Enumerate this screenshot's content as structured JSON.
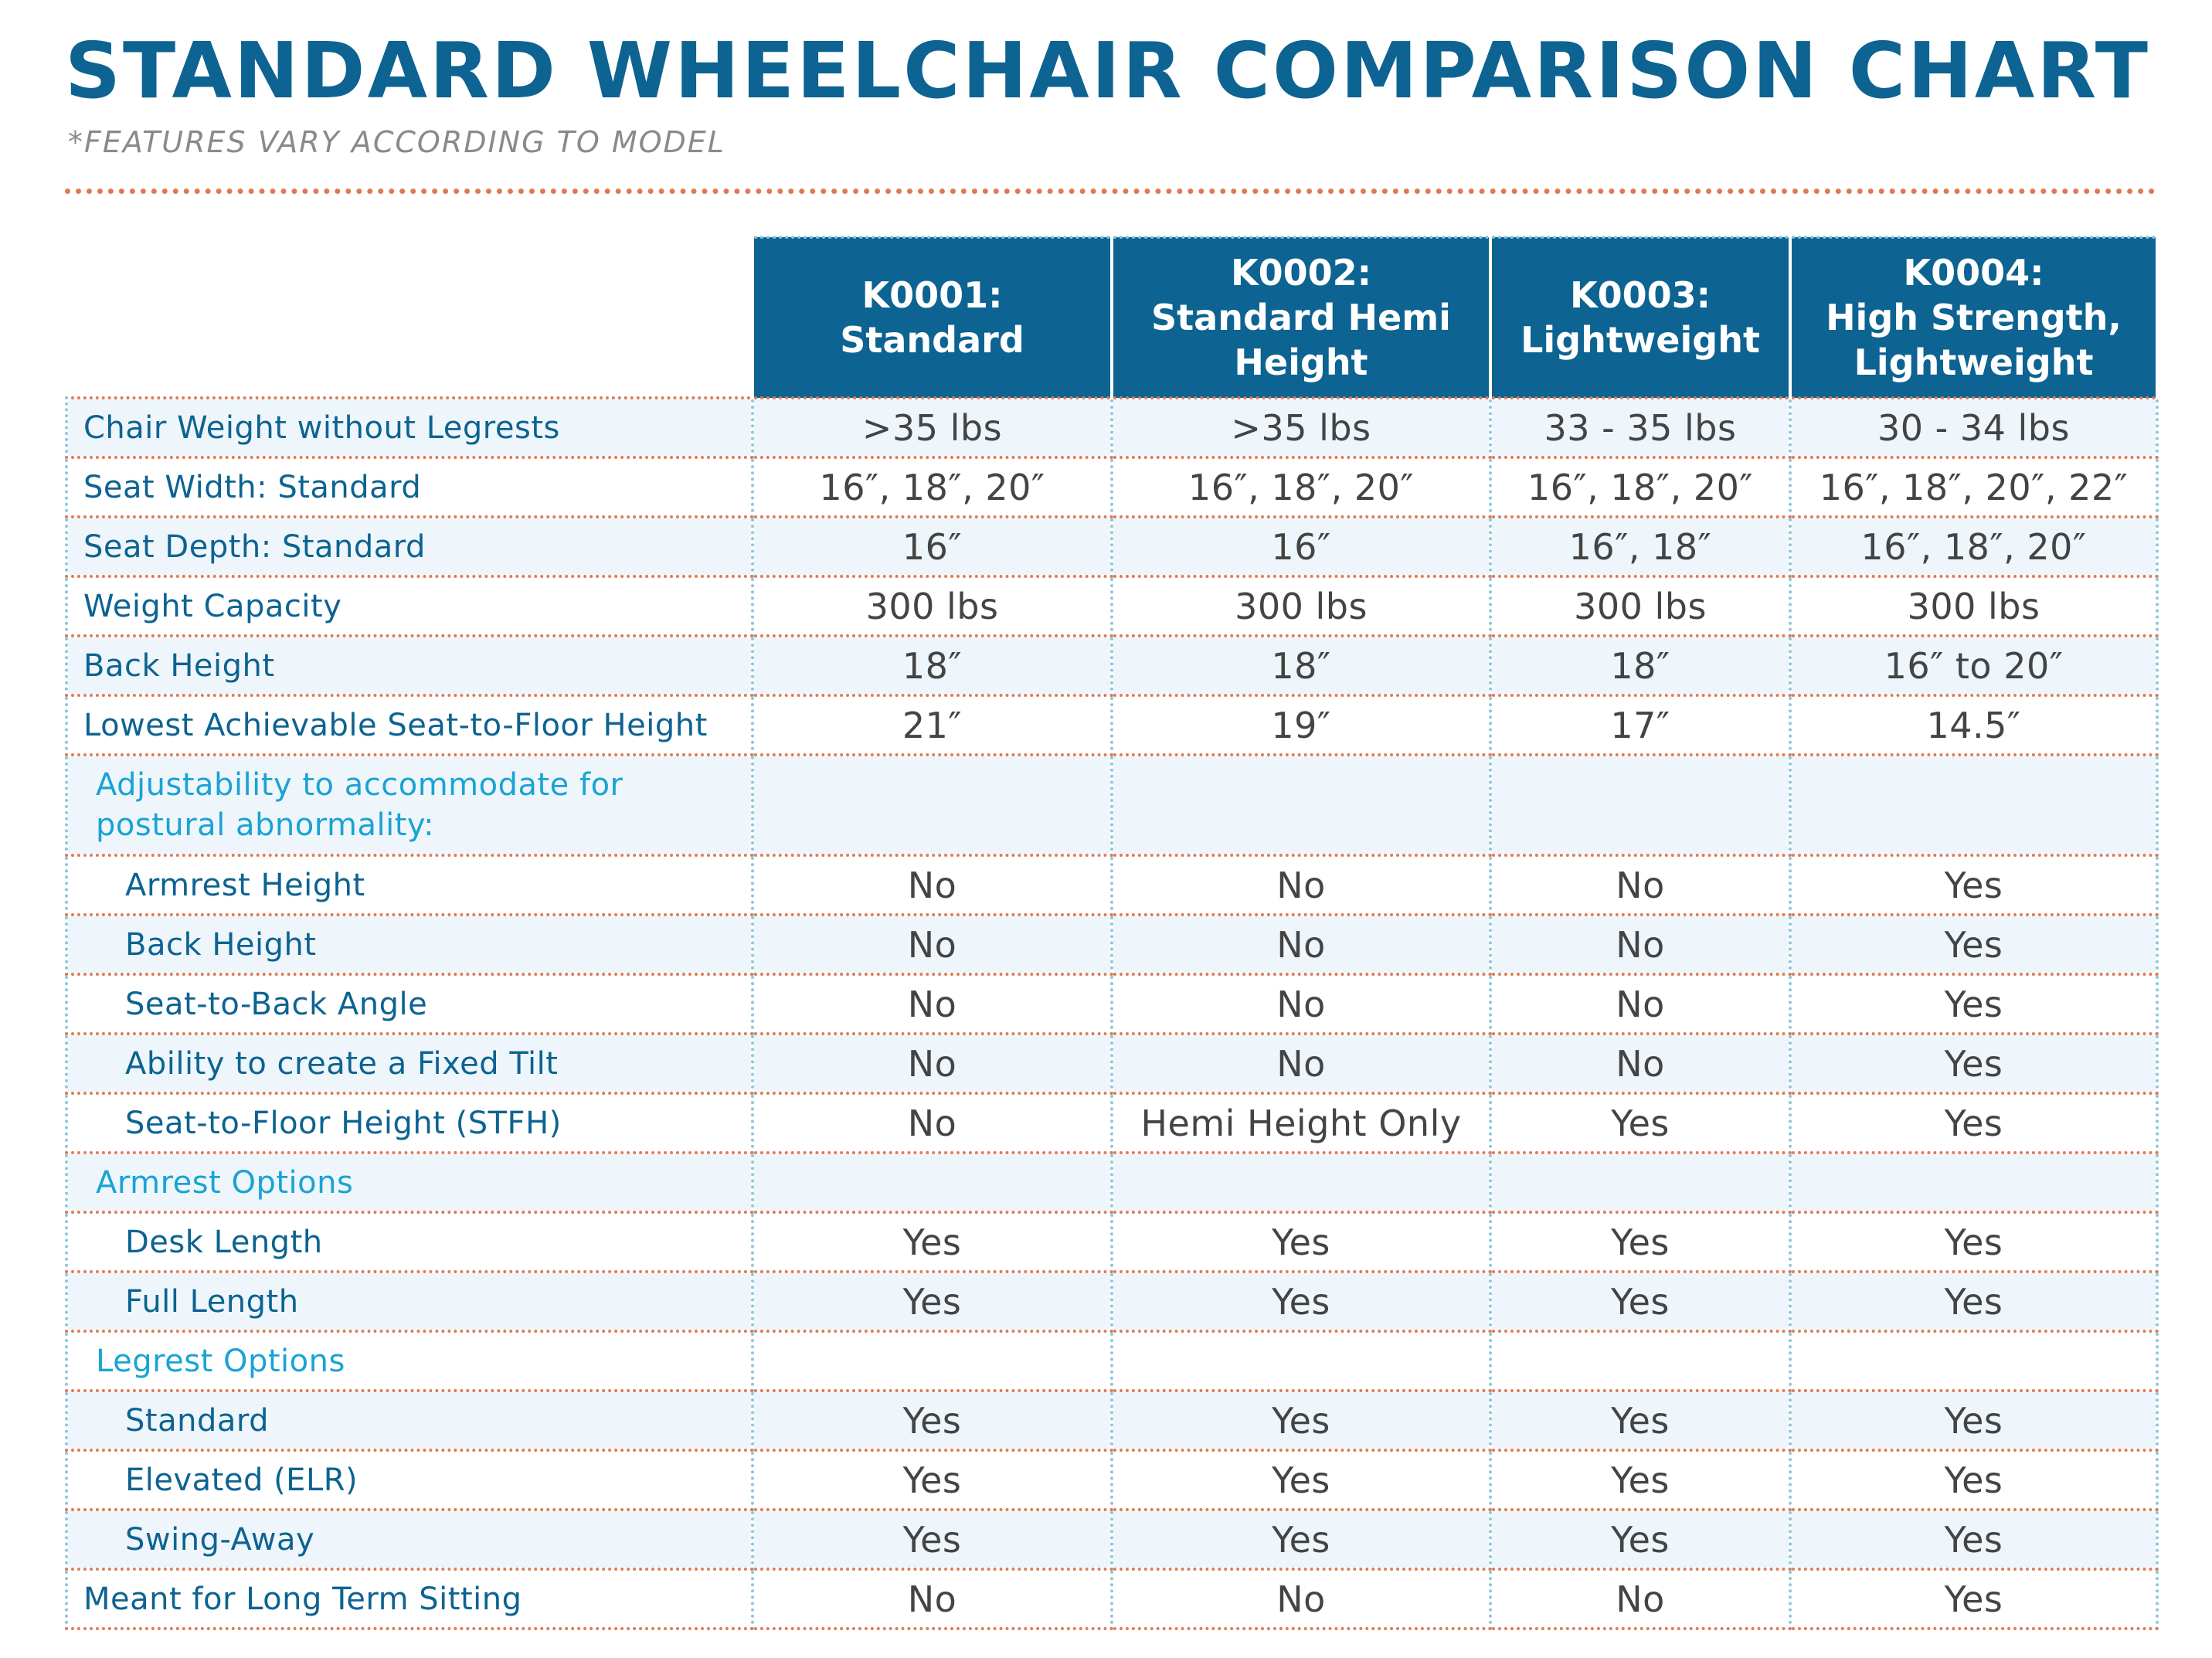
{
  "title": "STANDARD WHEELCHAIR COMPARISON CHART",
  "subtitle": "*FEATURES VARY ACCORDING TO MODEL",
  "colors": {
    "header_bg": "#0d6391",
    "title": "#0d6391",
    "section_label": "#1aa3d4",
    "row_rule": "#e07a55",
    "column_rule": "#8cc7dc",
    "shade": "#eef6fb"
  },
  "columns": [
    {
      "line1": "K0001:",
      "line2": "Standard",
      "line3": ""
    },
    {
      "line1": "K0002:",
      "line2": "Standard Hemi",
      "line3": "Height"
    },
    {
      "line1": "K0003:",
      "line2": "Lightweight",
      "line3": ""
    },
    {
      "line1": "K0004:",
      "line2": "High Strength,",
      "line3": "Lightweight"
    }
  ],
  "rows": [
    {
      "label": "Chair Weight without Legrests",
      "values": [
        ">35 lbs",
        ">35 lbs",
        "33 - 35 lbs",
        "30 - 34 lbs"
      ]
    },
    {
      "label": "Seat Width: Standard",
      "values": [
        "16″, 18″, 20″",
        "16″, 18″, 20″",
        "16″, 18″, 20″",
        "16″, 18″, 20″, 22″"
      ]
    },
    {
      "label": "Seat Depth: Standard",
      "values": [
        "16″",
        "16″",
        "16″, 18″",
        "16″, 18″, 20″"
      ]
    },
    {
      "label": "Weight Capacity",
      "values": [
        "300 lbs",
        "300 lbs",
        "300 lbs",
        "300 lbs"
      ]
    },
    {
      "label": "Back Height",
      "values": [
        "18″",
        "18″",
        "18″",
        "16″ to 20″"
      ]
    },
    {
      "label": "Lowest Achievable Seat-to-Floor Height",
      "values": [
        "21″",
        "19″",
        "17″",
        "14.5″"
      ]
    },
    {
      "label": "Adjustability to accommodate for postural abnormality:",
      "values": [
        "",
        "",
        "",
        ""
      ]
    },
    {
      "label": "Armrest Height",
      "values": [
        "No",
        "No",
        "No",
        "Yes"
      ]
    },
    {
      "label": "Back Height",
      "values": [
        "No",
        "No",
        "No",
        "Yes"
      ]
    },
    {
      "label": "Seat-to-Back Angle",
      "values": [
        "No",
        "No",
        "No",
        "Yes"
      ]
    },
    {
      "label": "Ability to create a Fixed Tilt",
      "values": [
        "No",
        "No",
        "No",
        "Yes"
      ]
    },
    {
      "label": "Seat-to-Floor Height (STFH)",
      "values": [
        "No",
        "Hemi Height Only",
        "Yes",
        "Yes"
      ]
    },
    {
      "label": "Armrest Options",
      "values": [
        "",
        "",
        "",
        ""
      ]
    },
    {
      "label": "Desk Length",
      "values": [
        "Yes",
        "Yes",
        "Yes",
        "Yes"
      ]
    },
    {
      "label": "Full Length",
      "values": [
        "Yes",
        "Yes",
        "Yes",
        "Yes"
      ]
    },
    {
      "label": "Legrest Options",
      "values": [
        "",
        "",
        "",
        ""
      ]
    },
    {
      "label": "Standard",
      "values": [
        "Yes",
        "Yes",
        "Yes",
        "Yes"
      ]
    },
    {
      "label": "Elevated (ELR)",
      "values": [
        "Yes",
        "Yes",
        "Yes",
        "Yes"
      ]
    },
    {
      "label": "Swing-Away",
      "values": [
        "Yes",
        "Yes",
        "Yes",
        "Yes"
      ]
    },
    {
      "label": "Meant for Long Term Sitting",
      "values": [
        "No",
        "No",
        "No",
        "Yes"
      ]
    }
  ]
}
